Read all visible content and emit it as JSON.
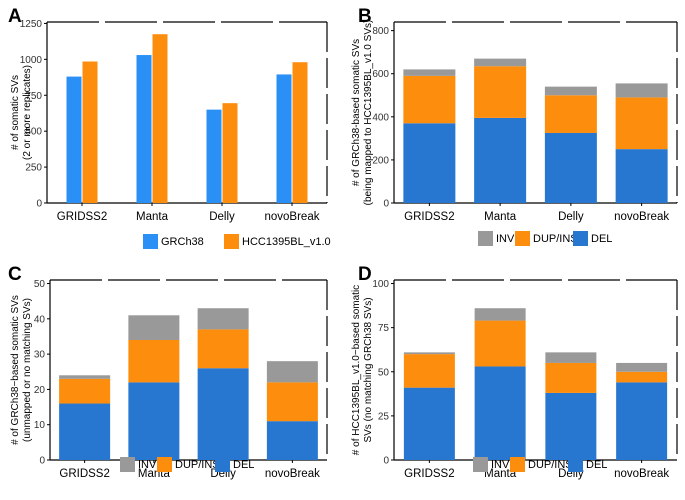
{
  "colors": {
    "GRCh38": "#2b90f5",
    "HCC1395BL_v1.0": "#fd8d0d",
    "INV": "#999999",
    "DUP/INS": "#fd8d0d",
    "DEL": "#2777d0"
  },
  "chart_data": [
    {
      "panel": "A",
      "type": "bar",
      "stacked": false,
      "categories": [
        "GRIDSS2",
        "Manta",
        "Delly",
        "novoBreak"
      ],
      "series": [
        {
          "name": "GRCh38",
          "values": [
            880,
            1030,
            650,
            895
          ]
        },
        {
          "name": "HCC1395BL_v1.0",
          "values": [
            985,
            1175,
            695,
            980
          ]
        }
      ],
      "ylabel_lines": [
        "# of somatic SVs",
        "(2 or more replicates)"
      ],
      "yticks": [
        0,
        250,
        500,
        750,
        1000,
        1250
      ],
      "ylim": [
        0,
        1260
      ],
      "legend": [
        "GRCh38",
        "HCC1395BL_v1.0"
      ],
      "legend_position": "bottom"
    },
    {
      "panel": "B",
      "type": "bar",
      "stacked": true,
      "categories": [
        "GRIDSS2",
        "Manta",
        "Delly",
        "novoBreak"
      ],
      "series": [
        {
          "name": "DEL",
          "values": [
            370,
            395,
            325,
            250
          ]
        },
        {
          "name": "DUP/INS",
          "values": [
            220,
            240,
            175,
            240
          ]
        },
        {
          "name": "INV",
          "values": [
            30,
            35,
            40,
            65
          ]
        }
      ],
      "ylabel_lines": [
        "# of GRCh38-based somatic SVs",
        "(being mapped to HCC1395BL_v1.0 SVs)"
      ],
      "yticks": [
        0,
        200,
        400,
        600,
        800
      ],
      "ylim": [
        0,
        840
      ],
      "legend": [
        "INV",
        "DUP/INS",
        "DEL"
      ],
      "legend_position": "bottom"
    },
    {
      "panel": "C",
      "type": "bar",
      "stacked": true,
      "categories": [
        "GRIDSS2",
        "Manta",
        "Delly",
        "novoBreak"
      ],
      "series": [
        {
          "name": "DEL",
          "values": [
            16,
            22,
            26,
            11
          ]
        },
        {
          "name": "DUP/INS",
          "values": [
            7,
            12,
            11,
            11
          ]
        },
        {
          "name": "INV",
          "values": [
            1,
            7,
            6,
            6
          ]
        }
      ],
      "ylabel_lines": [
        "# of GRCh38−based somatic SVs",
        "(unmapped or no matching SVs)"
      ],
      "yticks": [
        0,
        10,
        20,
        30,
        40,
        50
      ],
      "ylim": [
        0,
        51
      ],
      "legend": [
        "INV",
        "DUP/INS",
        "DEL"
      ],
      "legend_position": "bottom"
    },
    {
      "panel": "D",
      "type": "bar",
      "stacked": true,
      "categories": [
        "GRIDSS2",
        "Manta",
        "Delly",
        "novoBreak"
      ],
      "series": [
        {
          "name": "DEL",
          "values": [
            41,
            53,
            38,
            44
          ]
        },
        {
          "name": "DUP/INS",
          "values": [
            19,
            26,
            17,
            6
          ]
        },
        {
          "name": "INV",
          "values": [
            1,
            7,
            6,
            5
          ]
        }
      ],
      "ylabel_lines": [
        "# of HCC1395BL_v1.0−based somatic",
        "SVs (no matching GRCh38 SVs)"
      ],
      "yticks": [
        0,
        25,
        50,
        75,
        100
      ],
      "ylim": [
        0,
        102
      ],
      "legend": [
        "INV",
        "DUP/INS",
        "DEL"
      ],
      "legend_position": "bottom"
    }
  ]
}
